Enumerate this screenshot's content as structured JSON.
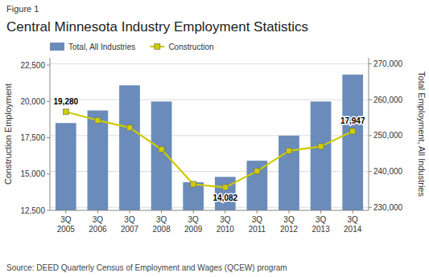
{
  "chart_data": {
    "type": "combo",
    "figure_label": "Figure 1",
    "title": "Central Minnesota Industry Employment Statistics",
    "source": "Source: DEED Quarterly Census of Employment and Wages (QCEW) program",
    "ylabel": "Construction Employment",
    "y2label": "Total Employment, All Industries",
    "categories": [
      "3Q\n2005",
      "3Q\n2006",
      "3Q\n2007",
      "3Q\n2008",
      "3Q\n2009",
      "3Q\n2010",
      "3Q\n2011",
      "3Q\n2012",
      "3Q\n2013",
      "3Q\n2014"
    ],
    "series": [
      {
        "name": "Total, All Industries",
        "type": "bar",
        "axis": "y2",
        "color": "#6b8cba",
        "values": [
          253500,
          257000,
          264000,
          259500,
          237000,
          238500,
          243000,
          250000,
          259500,
          267000
        ]
      },
      {
        "name": "Construction",
        "type": "line",
        "axis": "y",
        "color": "#cccc00",
        "marker": "square",
        "values": [
          19280,
          18700,
          18200,
          16700,
          14300,
          14082,
          15200,
          16600,
          16900,
          17947
        ],
        "value_labels": [
          "19,280",
          null,
          null,
          null,
          null,
          "14,082",
          null,
          null,
          null,
          "17,947"
        ]
      }
    ],
    "ylim": [
      12500,
      23000
    ],
    "yticks": [
      {
        "value": 12500,
        "label": "12,500"
      },
      {
        "value": 15000,
        "label": "15,000"
      },
      {
        "value": 17500,
        "label": "17,500"
      },
      {
        "value": 20000,
        "label": "20,000"
      },
      {
        "value": 22500,
        "label": "22,500"
      }
    ],
    "y2lim": [
      229167,
      271667
    ],
    "y2ticks": [
      {
        "value": 230000,
        "label": "230,000"
      },
      {
        "value": 240000,
        "label": "240,000"
      },
      {
        "value": 250000,
        "label": "250,000"
      },
      {
        "value": 260000,
        "label": "260,000"
      },
      {
        "value": 270000,
        "label": "270,000"
      }
    ],
    "grid": true,
    "legend": "upper left"
  }
}
